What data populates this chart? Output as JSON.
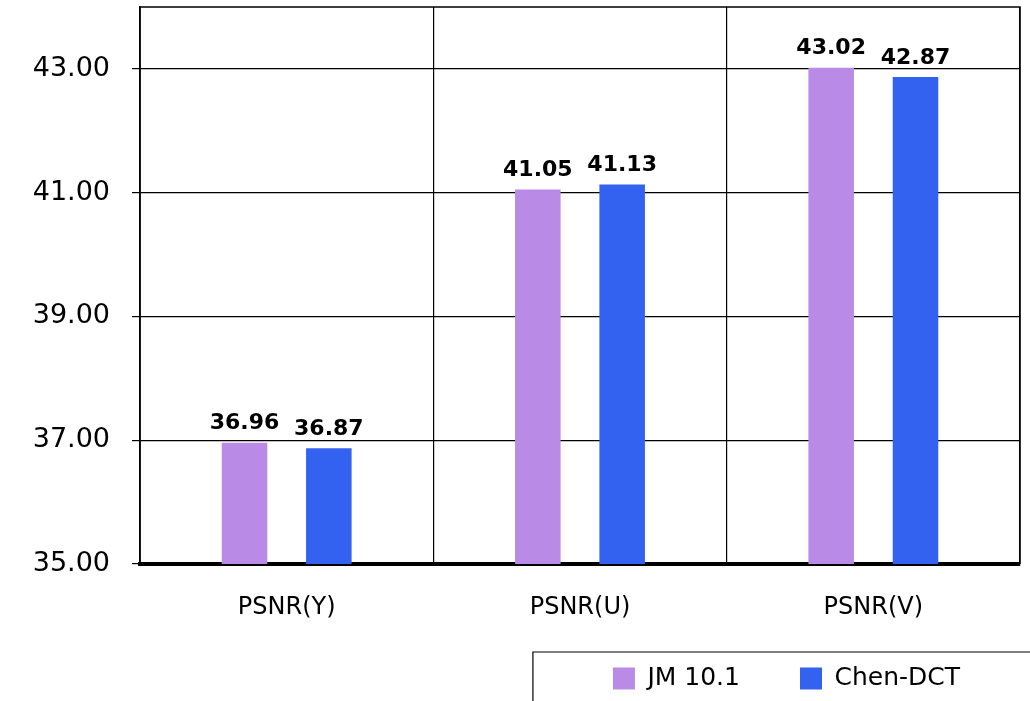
{
  "chart_data": {
    "type": "bar",
    "categories": [
      "PSNR(Y)",
      "PSNR(U)",
      "PSNR(V)"
    ],
    "series": [
      {
        "name": "JM 10.1",
        "color": "#b98ae6",
        "values": [
          36.96,
          41.05,
          43.02
        ]
      },
      {
        "name": "Chen-DCT",
        "color": "#3462f0",
        "values": [
          36.87,
          41.13,
          42.87
        ]
      }
    ],
    "ylim": [
      35,
      44
    ],
    "yticks": [
      {
        "value": 35,
        "label": "35.00"
      },
      {
        "value": 37,
        "label": "37.00"
      },
      {
        "value": 39,
        "label": "39.00"
      },
      {
        "value": 41,
        "label": "41.00"
      },
      {
        "value": 43,
        "label": "43.00"
      }
    ],
    "grid": true,
    "legend": "bottom right",
    "data_labels": true
  }
}
